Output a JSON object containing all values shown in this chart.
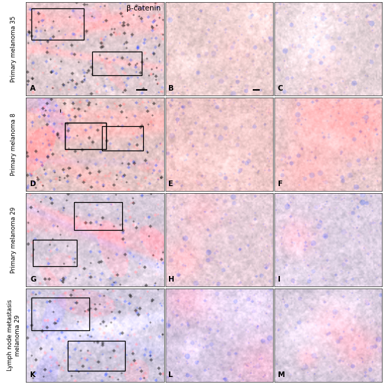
{
  "title": "β-catenin",
  "row_labels": [
    "Primary melanoma 35",
    "Primary melanoma 8",
    "Primary melanoma 29",
    "Lymph node metastasis\nmelanoma 29"
  ],
  "panel_labels": [
    "A",
    "B",
    "C",
    "D",
    "E",
    "F",
    "G",
    "H",
    "I",
    "K",
    "L",
    "M"
  ],
  "fig_bg": "#ffffff",
  "row_label_fontsize": 6.2,
  "panel_label_fontsize": 7.5,
  "title_fontsize": 7.5
}
